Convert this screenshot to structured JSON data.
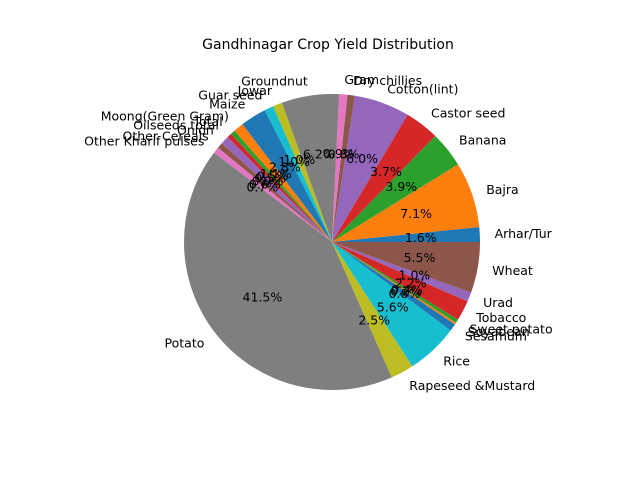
{
  "chart_data": {
    "type": "pie",
    "title": "Gandhinagar Crop Yield Distribution",
    "start_angle_deg": 0,
    "direction": "counterclockwise",
    "slices": [
      {
        "label": "Arhar/Tur",
        "value": 1.6,
        "pct_label": "1.6%",
        "color": "#1f77b4"
      },
      {
        "label": "Bajra",
        "value": 7.1,
        "pct_label": "7.1%",
        "color": "#ff7f0e"
      },
      {
        "label": "Banana",
        "value": 3.9,
        "pct_label": "3.9%",
        "color": "#2ca02c"
      },
      {
        "label": "Castor seed",
        "value": 3.7,
        "pct_label": "3.7%",
        "color": "#d62728"
      },
      {
        "label": "Cotton(lint)",
        "value": 6.0,
        "pct_label": "6.0%",
        "color": "#9467bd"
      },
      {
        "label": "Dry chillies",
        "value": 0.8,
        "pct_label": "0.8%",
        "color": "#8c564b"
      },
      {
        "label": "Gram",
        "value": 0.9,
        "pct_label": "0.9%",
        "color": "#e377c2"
      },
      {
        "label": "Groundnut",
        "value": 6.2,
        "pct_label": "6.2%",
        "color": "#7f7f7f"
      },
      {
        "label": "Jowar",
        "value": 1.0,
        "pct_label": "1.0%",
        "color": "#bcbd22"
      },
      {
        "label": "Guar seed",
        "value": 1.0,
        "pct_label": "1.0%",
        "color": "#17becf"
      },
      {
        "label": "Maize",
        "value": 2.8,
        "pct_label": "2.8%",
        "color": "#1f77b4"
      },
      {
        "label": "Moong(Green Gram)",
        "value": 1.1,
        "pct_label": "1.1%",
        "color": "#ff7f0e"
      },
      {
        "label": "Total",
        "value": 0.5,
        "pct_label": "0.5%",
        "color": "#2ca02c"
      },
      {
        "label": "Oilseeds total",
        "value": 0.5,
        "pct_label": "0.5%",
        "color": "#d62728"
      },
      {
        "label": "Onion",
        "value": 0.9,
        "pct_label": "0.9%",
        "color": "#9467bd"
      },
      {
        "label": "Other Cereals",
        "value": 0.6,
        "pct_label": "0.6%",
        "color": "#8c564b"
      },
      {
        "label": "Other Kharif pulses",
        "value": 0.7,
        "pct_label": "0.7%",
        "color": "#e377c2"
      },
      {
        "label": "Potato",
        "value": 41.5,
        "pct_label": "41.5%",
        "color": "#7f7f7f"
      },
      {
        "label": "Rapeseed &Mustard",
        "value": 2.5,
        "pct_label": "2.5%",
        "color": "#bcbd22"
      },
      {
        "label": "Rice",
        "value": 5.6,
        "pct_label": "5.6%",
        "color": "#17becf"
      },
      {
        "label": "Sesamum",
        "value": 0.8,
        "pct_label": "0.8%",
        "color": "#1f77b4"
      },
      {
        "label": "Soyabean",
        "value": 0.2,
        "pct_label": "0.2%",
        "color": "#ff7f0e"
      },
      {
        "label": "Sweet potato",
        "value": 0.4,
        "pct_label": "0.4%",
        "color": "#2ca02c"
      },
      {
        "label": "Tobacco",
        "value": 2.2,
        "pct_label": "2.2%",
        "color": "#d62728"
      },
      {
        "label": "Urad",
        "value": 1.0,
        "pct_label": "1.0%",
        "color": "#9467bd"
      },
      {
        "label": "Wheat",
        "value": 5.5,
        "pct_label": "5.5%",
        "color": "#8c564b"
      }
    ]
  }
}
